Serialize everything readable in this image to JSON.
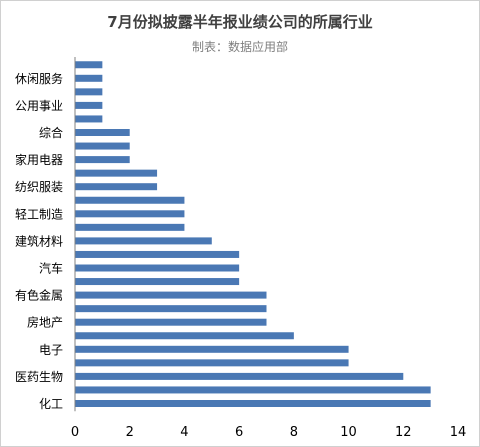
{
  "chart_data": {
    "type": "bar",
    "orientation": "horizontal",
    "title": "7月份拟披露半年报业绩公司的所属行业",
    "subtitle": "制表：数据应用部",
    "xlabel": "",
    "ylabel": "",
    "xlim": [
      0,
      14
    ],
    "x_ticks": [
      0,
      2,
      4,
      6,
      8,
      10,
      12,
      14
    ],
    "grid": false,
    "bar_color": "#4a78b4",
    "categories": [
      "化工",
      "",
      "医药生物",
      "",
      "电子",
      "",
      "房地产",
      "",
      "有色金属",
      "",
      "汽车",
      "",
      "建筑材料",
      "",
      "轻工制造",
      "",
      "纺织服装",
      "",
      "家用电器",
      "",
      "综合",
      "",
      "公用事业",
      "",
      "休闲服务",
      ""
    ],
    "values": [
      13,
      13,
      12,
      10,
      10,
      8,
      7,
      7,
      7,
      6,
      6,
      6,
      5,
      4,
      4,
      4,
      3,
      3,
      2,
      2,
      2,
      1,
      1,
      1,
      1,
      1
    ]
  }
}
